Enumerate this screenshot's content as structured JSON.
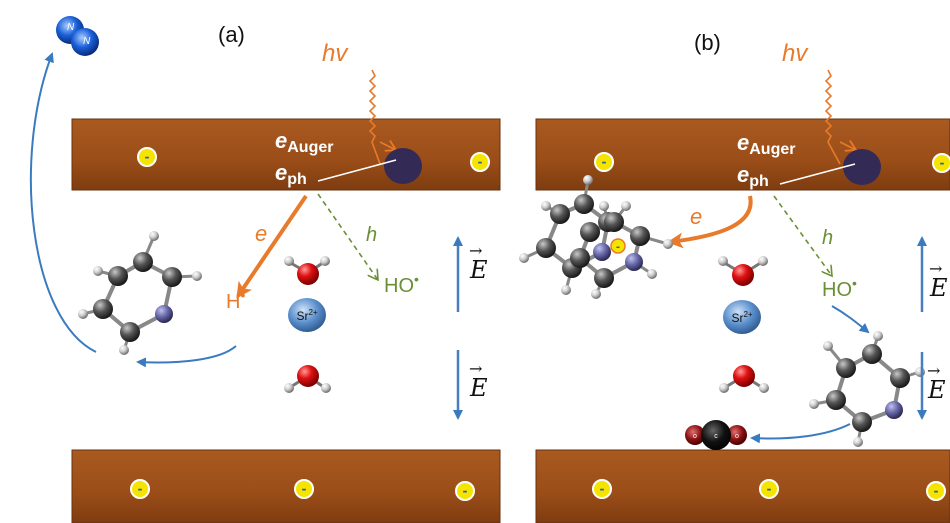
{
  "colors": {
    "plate": "#9c4f1a",
    "plate_edge": "#7a3a10",
    "electron": "#e87a2c",
    "hole": "#6b8f35",
    "field_arrow": "#4a7fbf",
    "reaction_arrow": "#3a7bbf",
    "particle": "#332a55",
    "charge_fill": "#f5e400",
    "charge_ring": "#ffffff",
    "strontium": "#5a8fcc",
    "oxygen": "#e01010",
    "hydrogen": "#d8d8d8",
    "carbon": "#555555",
    "nitrogen": "#6a6aaa"
  },
  "panel_a": {
    "label": "(a)",
    "photon": "hv",
    "auger": "e",
    "auger_sub": "Auger",
    "ph": "e",
    "ph_sub": "ph",
    "electron": "e",
    "hole": "h",
    "h_radical": "H",
    "ho_radical": "HO",
    "radical_dot": "•",
    "strontium": "Sr",
    "strontium_charge": "2+",
    "field": "E",
    "field_arrow": "→",
    "charge": "-",
    "product": "N",
    "product_2": "N"
  },
  "panel_b": {
    "label": "(b)",
    "photon": "hv",
    "auger": "e",
    "auger_sub": "Auger",
    "ph": "e",
    "ph_sub": "ph",
    "electron": "e",
    "hole": "h",
    "ho_radical": "HO",
    "radical_dot": "•",
    "strontium": "Sr",
    "strontium_charge": "2+",
    "field": "E",
    "field_arrow": "→",
    "charge": "-",
    "co2_o": "o",
    "co2_c": "c",
    "co2_o2": "o"
  }
}
